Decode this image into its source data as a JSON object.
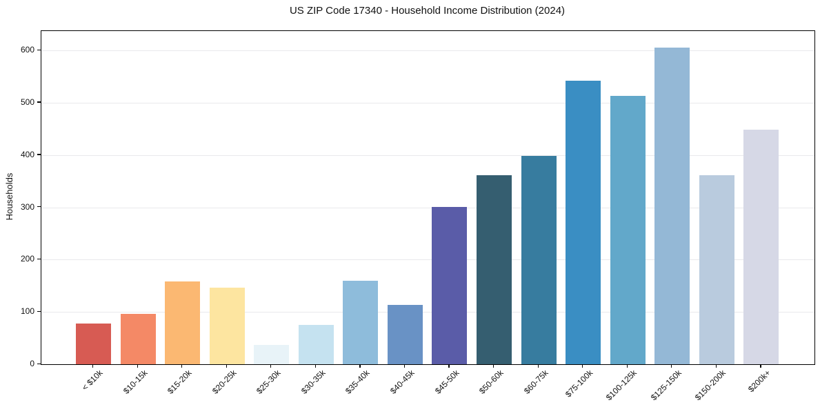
{
  "chart_data": {
    "type": "bar",
    "title": "US ZIP Code 17340 - Household Income Distribution (2024)",
    "xlabel": "",
    "ylabel": "Households",
    "categories": [
      "< $10k",
      "$10-15k",
      "$15-20k",
      "$20-25k",
      "$25-30k",
      "$30-35k",
      "$35-40k",
      "$40-45k",
      "$45-50k",
      "$50-60k",
      "$60-75k",
      "$75-100k",
      "$100-125k",
      "$125-150k",
      "$150-200k",
      "$200k+"
    ],
    "values": [
      78,
      96,
      158,
      146,
      37,
      75,
      159,
      113,
      301,
      362,
      398,
      542,
      513,
      605,
      362,
      448
    ],
    "bar_colors": [
      "#d75b53",
      "#f48966",
      "#fbb872",
      "#fde5a0",
      "#e8f3f8",
      "#c5e2f0",
      "#8ebcdb",
      "#6992c5",
      "#5a5ca8",
      "#355e70",
      "#377c9f",
      "#3a8ec3",
      "#62a8ca",
      "#94b8d6",
      "#b9cbde",
      "#d6d8e6"
    ],
    "yticks": [
      0,
      100,
      200,
      300,
      400,
      500,
      600
    ],
    "ylim": [
      0,
      637
    ],
    "grid": true,
    "grid_color": "#e9e9ec",
    "axis_color": "#000000",
    "background": "#ffffff",
    "x_tick_rotation": 45,
    "legend_position": "none"
  }
}
